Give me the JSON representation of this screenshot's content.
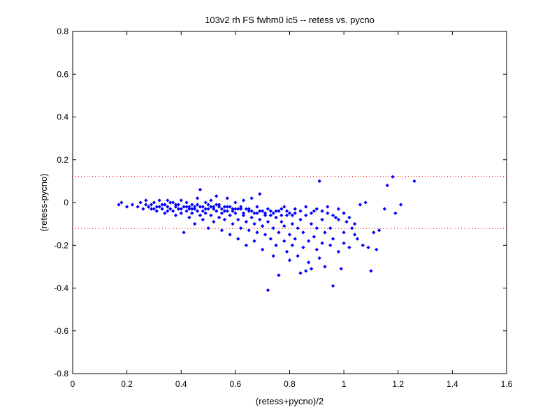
{
  "chart_data": {
    "type": "scatter",
    "title": "103v2 rh FS fwhm0 ic5 -- retess vs. pycno",
    "xlabel": "(retess+pycno)/2",
    "ylabel": "(retess-pycno)",
    "xlim": [
      0,
      1.6
    ],
    "ylim": [
      -0.8,
      0.8
    ],
    "xticks": [
      0,
      0.2,
      0.4,
      0.6,
      0.8,
      1,
      1.2,
      1.4,
      1.6
    ],
    "xtick_labels": [
      "0",
      "0.2",
      "0.4",
      "0.6",
      "0.8",
      "1",
      "1.2",
      "1.4",
      "1.6"
    ],
    "yticks": [
      -0.8,
      -0.6,
      -0.4,
      -0.2,
      0,
      0.2,
      0.4,
      0.6,
      0.8
    ],
    "ytick_labels": [
      "-0.8",
      "-0.6",
      "-0.4",
      "-0.2",
      "0",
      "0.2",
      "0.4",
      "0.6",
      "0.8"
    ],
    "grid": false,
    "marker_color": "#0000ff",
    "reference_line_color": "#ff0000",
    "reference_lines_y": [
      0.122,
      -0.122
    ],
    "points": [
      [
        0.17,
        -0.01
      ],
      [
        0.18,
        0.0
      ],
      [
        0.2,
        -0.02
      ],
      [
        0.22,
        -0.01
      ],
      [
        0.24,
        -0.02
      ],
      [
        0.25,
        0.0
      ],
      [
        0.26,
        -0.03
      ],
      [
        0.27,
        0.01
      ],
      [
        0.28,
        -0.02
      ],
      [
        0.29,
        -0.01
      ],
      [
        0.3,
        -0.03
      ],
      [
        0.3,
        0.0
      ],
      [
        0.31,
        -0.04
      ],
      [
        0.32,
        -0.02
      ],
      [
        0.32,
        0.01
      ],
      [
        0.33,
        -0.03
      ],
      [
        0.34,
        -0.01
      ],
      [
        0.34,
        -0.05
      ],
      [
        0.35,
        -0.02
      ],
      [
        0.35,
        0.01
      ],
      [
        0.36,
        -0.03
      ],
      [
        0.37,
        -0.04
      ],
      [
        0.37,
        0.0
      ],
      [
        0.38,
        -0.02
      ],
      [
        0.38,
        -0.06
      ],
      [
        0.39,
        -0.01
      ],
      [
        0.39,
        -0.03
      ],
      [
        0.4,
        -0.05
      ],
      [
        0.4,
        0.01
      ],
      [
        0.41,
        -0.02
      ],
      [
        0.41,
        -0.14
      ],
      [
        0.42,
        -0.04
      ],
      [
        0.42,
        0.0
      ],
      [
        0.43,
        -0.03
      ],
      [
        0.43,
        -0.07
      ],
      [
        0.44,
        -0.01
      ],
      [
        0.44,
        -0.05
      ],
      [
        0.45,
        -0.02
      ],
      [
        0.45,
        -0.1
      ],
      [
        0.46,
        0.02
      ],
      [
        0.46,
        -0.04
      ],
      [
        0.47,
        -0.06
      ],
      [
        0.47,
        0.06
      ],
      [
        0.48,
        -0.02
      ],
      [
        0.48,
        -0.08
      ],
      [
        0.49,
        0.0
      ],
      [
        0.49,
        -0.05
      ],
      [
        0.5,
        -0.03
      ],
      [
        0.5,
        -0.12
      ],
      [
        0.51,
        0.01
      ],
      [
        0.51,
        -0.06
      ],
      [
        0.52,
        -0.02
      ],
      [
        0.52,
        -0.09
      ],
      [
        0.53,
        -0.04
      ],
      [
        0.53,
        0.03
      ],
      [
        0.54,
        -0.07
      ],
      [
        0.54,
        -0.01
      ],
      [
        0.55,
        -0.05
      ],
      [
        0.55,
        -0.13
      ],
      [
        0.56,
        -0.02
      ],
      [
        0.56,
        -0.08
      ],
      [
        0.57,
        -0.04
      ],
      [
        0.57,
        0.02
      ],
      [
        0.58,
        -0.06
      ],
      [
        0.58,
        -0.15
      ],
      [
        0.59,
        -0.03
      ],
      [
        0.59,
        -0.1
      ],
      [
        0.6,
        -0.05
      ],
      [
        0.6,
        0.0
      ],
      [
        0.61,
        -0.08
      ],
      [
        0.61,
        -0.17
      ],
      [
        0.62,
        -0.03
      ],
      [
        0.62,
        -0.12
      ],
      [
        0.63,
        -0.06
      ],
      [
        0.63,
        0.01
      ],
      [
        0.64,
        -0.09
      ],
      [
        0.64,
        -0.2
      ],
      [
        0.65,
        -0.04
      ],
      [
        0.65,
        -0.13
      ],
      [
        0.66,
        -0.07
      ],
      [
        0.66,
        0.02
      ],
      [
        0.67,
        -0.1
      ],
      [
        0.67,
        -0.18
      ],
      [
        0.68,
        -0.05
      ],
      [
        0.68,
        -0.14
      ],
      [
        0.69,
        -0.08
      ],
      [
        0.69,
        0.04
      ],
      [
        0.7,
        -0.11
      ],
      [
        0.7,
        -0.22
      ],
      [
        0.71,
        -0.06
      ],
      [
        0.71,
        -0.15
      ],
      [
        0.72,
        -0.09
      ],
      [
        0.72,
        -0.41
      ],
      [
        0.73,
        -0.04
      ],
      [
        0.73,
        -0.17
      ],
      [
        0.74,
        -0.12
      ],
      [
        0.74,
        -0.25
      ],
      [
        0.75,
        -0.07
      ],
      [
        0.75,
        -0.2
      ],
      [
        0.76,
        -0.14
      ],
      [
        0.76,
        -0.34
      ],
      [
        0.77,
        -0.09
      ],
      [
        0.77,
        -0.03
      ],
      [
        0.78,
        -0.18
      ],
      [
        0.78,
        -0.11
      ],
      [
        0.79,
        -0.23
      ],
      [
        0.79,
        -0.06
      ],
      [
        0.8,
        -0.15
      ],
      [
        0.8,
        -0.27
      ],
      [
        0.81,
        -0.1
      ],
      [
        0.81,
        -0.2
      ],
      [
        0.82,
        -0.05
      ],
      [
        0.82,
        -0.17
      ],
      [
        0.83,
        -0.25
      ],
      [
        0.83,
        -0.12
      ],
      [
        0.84,
        -0.33
      ],
      [
        0.84,
        -0.08
      ],
      [
        0.85,
        -0.21
      ],
      [
        0.85,
        -0.14
      ],
      [
        0.86,
        -0.32
      ],
      [
        0.86,
        -0.06
      ],
      [
        0.87,
        -0.18
      ],
      [
        0.87,
        -0.28
      ],
      [
        0.88,
        -0.1
      ],
      [
        0.88,
        -0.31
      ],
      [
        0.89,
        -0.16
      ],
      [
        0.89,
        -0.04
      ],
      [
        0.9,
        -0.22
      ],
      [
        0.9,
        -0.12
      ],
      [
        0.91,
        0.1
      ],
      [
        0.91,
        -0.26
      ],
      [
        0.92,
        -0.08
      ],
      [
        0.92,
        -0.19
      ],
      [
        0.93,
        -0.14
      ],
      [
        0.93,
        -0.3
      ],
      [
        0.94,
        -0.05
      ],
      [
        0.95,
        -0.2
      ],
      [
        0.95,
        -0.12
      ],
      [
        0.96,
        -0.39
      ],
      [
        0.96,
        -0.17
      ],
      [
        0.97,
        -0.07
      ],
      [
        0.98,
        -0.23
      ],
      [
        0.98,
        -0.03
      ],
      [
        0.99,
        -0.31
      ],
      [
        1.0,
        -0.14
      ],
      [
        1.0,
        -0.19
      ],
      [
        1.01,
        -0.09
      ],
      [
        1.02,
        -0.21
      ],
      [
        1.03,
        -0.12
      ],
      [
        1.04,
        -0.15
      ],
      [
        1.05,
        -0.17
      ],
      [
        1.06,
        -0.01
      ],
      [
        1.07,
        -0.2
      ],
      [
        1.08,
        0.0
      ],
      [
        1.09,
        -0.21
      ],
      [
        1.1,
        -0.32
      ],
      [
        1.11,
        -0.14
      ],
      [
        1.12,
        -0.22
      ],
      [
        1.13,
        -0.13
      ],
      [
        1.15,
        -0.03
      ],
      [
        1.16,
        0.08
      ],
      [
        1.18,
        0.12
      ],
      [
        1.19,
        -0.05
      ],
      [
        1.21,
        -0.01
      ],
      [
        1.26,
        0.1
      ],
      [
        0.27,
        -0.01
      ],
      [
        0.29,
        -0.03
      ],
      [
        0.31,
        -0.02
      ],
      [
        0.33,
        -0.01
      ],
      [
        0.35,
        -0.04
      ],
      [
        0.36,
        0.0
      ],
      [
        0.38,
        -0.01
      ],
      [
        0.4,
        -0.03
      ],
      [
        0.42,
        -0.02
      ],
      [
        0.44,
        -0.03
      ],
      [
        0.46,
        -0.01
      ],
      [
        0.48,
        -0.04
      ],
      [
        0.5,
        -0.01
      ],
      [
        0.52,
        -0.03
      ],
      [
        0.54,
        -0.02
      ],
      [
        0.56,
        -0.04
      ],
      [
        0.58,
        -0.02
      ],
      [
        0.6,
        -0.03
      ],
      [
        0.62,
        -0.02
      ],
      [
        0.64,
        -0.03
      ],
      [
        0.66,
        -0.04
      ],
      [
        0.68,
        -0.02
      ],
      [
        0.7,
        -0.04
      ],
      [
        0.72,
        -0.03
      ],
      [
        0.74,
        -0.05
      ],
      [
        0.76,
        -0.04
      ],
      [
        0.78,
        -0.02
      ],
      [
        0.8,
        -0.05
      ],
      [
        0.82,
        -0.03
      ],
      [
        0.84,
        -0.04
      ],
      [
        0.86,
        -0.02
      ],
      [
        0.88,
        -0.05
      ],
      [
        0.9,
        -0.03
      ],
      [
        0.92,
        -0.04
      ],
      [
        0.94,
        -0.02
      ],
      [
        0.96,
        -0.06
      ],
      [
        0.98,
        -0.08
      ],
      [
        1.0,
        -0.05
      ],
      [
        1.02,
        -0.07
      ],
      [
        1.04,
        -0.1
      ],
      [
        0.43,
        -0.02
      ],
      [
        0.45,
        -0.03
      ],
      [
        0.47,
        -0.02
      ],
      [
        0.49,
        -0.03
      ],
      [
        0.51,
        -0.02
      ],
      [
        0.53,
        -0.01
      ],
      [
        0.55,
        -0.03
      ],
      [
        0.57,
        -0.02
      ],
      [
        0.59,
        -0.04
      ],
      [
        0.61,
        -0.03
      ],
      [
        0.63,
        -0.05
      ],
      [
        0.65,
        -0.03
      ],
      [
        0.67,
        -0.05
      ],
      [
        0.69,
        -0.04
      ],
      [
        0.71,
        -0.05
      ],
      [
        0.73,
        -0.06
      ],
      [
        0.75,
        -0.04
      ],
      [
        0.77,
        -0.06
      ],
      [
        0.79,
        -0.04
      ],
      [
        0.81,
        -0.06
      ]
    ]
  }
}
